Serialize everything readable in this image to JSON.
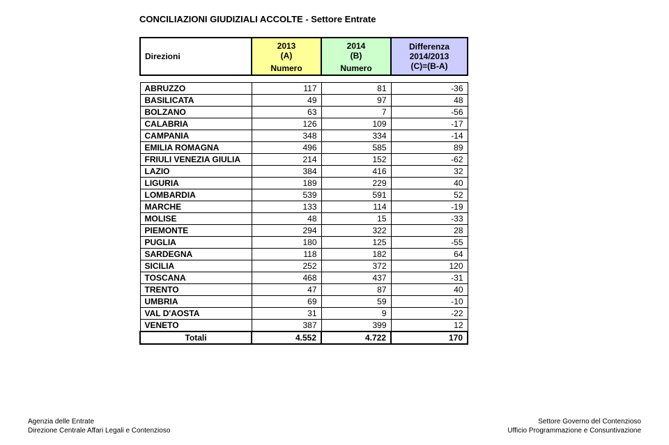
{
  "title": "CONCILIAZIONI GIUDIZIALI ACCOLTE - Settore Entrate",
  "header": {
    "direzioni": "Direzioni",
    "colA_year": "2013",
    "colA_sub": "(A)",
    "colB_year": "2014",
    "colB_sub": "(B)",
    "numero": "Numero",
    "diff_l1": "Differenza",
    "diff_l2": "2014/2013",
    "diff_l3": "(C)=(B-A)"
  },
  "header_bg": {
    "direzioni": "#ffffff",
    "colA": "#ffff99",
    "colB": "#ccffcc",
    "diff": "#ccccff"
  },
  "rows": [
    {
      "region": "ABRUZZO",
      "a": "117",
      "b": "81",
      "d": "-36"
    },
    {
      "region": "BASILICATA",
      "a": "49",
      "b": "97",
      "d": "48"
    },
    {
      "region": "BOLZANO",
      "a": "63",
      "b": "7",
      "d": "-56"
    },
    {
      "region": "CALABRIA",
      "a": "126",
      "b": "109",
      "d": "-17"
    },
    {
      "region": "CAMPANIA",
      "a": "348",
      "b": "334",
      "d": "-14"
    },
    {
      "region": "EMILIA ROMAGNA",
      "a": "496",
      "b": "585",
      "d": "89"
    },
    {
      "region": "FRIULI VENEZIA GIULIA",
      "a": "214",
      "b": "152",
      "d": "-62"
    },
    {
      "region": "LAZIO",
      "a": "384",
      "b": "416",
      "d": "32"
    },
    {
      "region": "LIGURIA",
      "a": "189",
      "b": "229",
      "d": "40"
    },
    {
      "region": "LOMBARDIA",
      "a": "539",
      "b": "591",
      "d": "52"
    },
    {
      "region": "MARCHE",
      "a": "133",
      "b": "114",
      "d": "-19"
    },
    {
      "region": "MOLISE",
      "a": "48",
      "b": "15",
      "d": "-33"
    },
    {
      "region": "PIEMONTE",
      "a": "294",
      "b": "322",
      "d": "28"
    },
    {
      "region": "PUGLIA",
      "a": "180",
      "b": "125",
      "d": "-55"
    },
    {
      "region": "SARDEGNA",
      "a": "118",
      "b": "182",
      "d": "64"
    },
    {
      "region": "SICILIA",
      "a": "252",
      "b": "372",
      "d": "120"
    },
    {
      "region": "TOSCANA",
      "a": "468",
      "b": "437",
      "d": "-31"
    },
    {
      "region": "TRENTO",
      "a": "47",
      "b": "87",
      "d": "40"
    },
    {
      "region": "UMBRIA",
      "a": "69",
      "b": "59",
      "d": "-10"
    },
    {
      "region": "VAL D'AOSTA",
      "a": "31",
      "b": "9",
      "d": "-22"
    },
    {
      "region": "VENETO",
      "a": "387",
      "b": "399",
      "d": "12"
    }
  ],
  "totals": {
    "label": "Totali",
    "a": "4.552",
    "b": "4.722",
    "d": "170"
  },
  "footer": {
    "left_l1": "Agenzia delle Entrate",
    "left_l2": "Direzione Centrale Affari Legali e Contenzioso",
    "right_l1": "Settore Governo del Contenzioso",
    "right_l2": "Ufficio Programmazione e Consuntivazione"
  }
}
